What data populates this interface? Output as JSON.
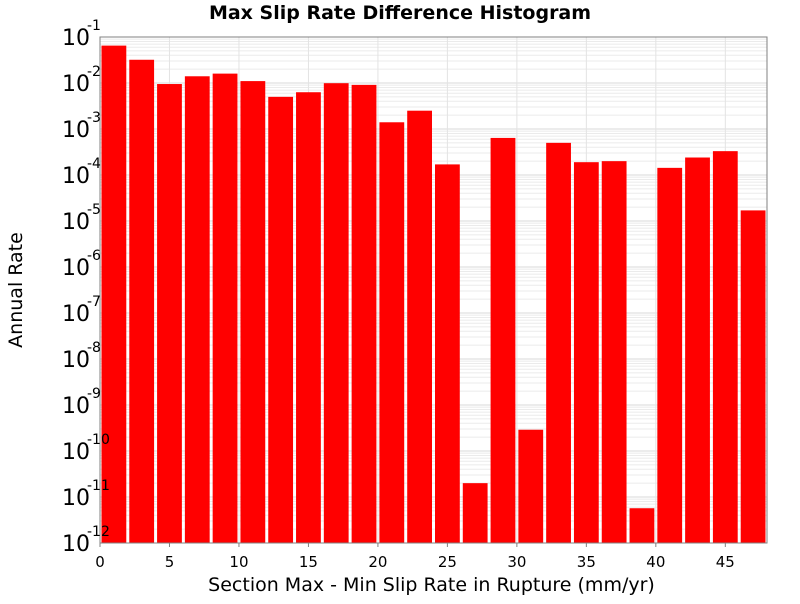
{
  "chart_data": {
    "type": "bar",
    "title": "Max Slip Rate Difference Histogram",
    "xlabel": "Section Max - Min Slip Rate in Rupture (mm/yr)",
    "ylabel": "Annual Rate",
    "y_scale": "log",
    "ylim": [
      1e-12,
      0.1
    ],
    "xlim": [
      0,
      48
    ],
    "bin_width": 2,
    "x_ticks": [
      0,
      5,
      10,
      15,
      20,
      25,
      30,
      35,
      40,
      45
    ],
    "y_tick_exponents": [
      -1,
      -2,
      -3,
      -4,
      -5,
      -6,
      -7,
      -8,
      -9,
      -10,
      -11,
      -12
    ],
    "y_tick_base": "10",
    "grid": true,
    "bar_color": "#ff0000",
    "x": [
      1,
      3,
      5,
      7,
      9,
      11,
      13,
      15,
      17,
      19,
      21,
      23,
      25,
      27,
      29,
      31,
      33,
      35,
      37,
      39,
      41,
      43,
      45,
      47
    ],
    "values": [
      0.065,
      0.032,
      0.0095,
      0.014,
      0.016,
      0.011,
      0.005,
      0.0063,
      0.0099,
      0.0091,
      0.0014,
      0.0025,
      0.00017,
      2e-11,
      0.00064,
      2.9e-10,
      0.0005,
      0.00019,
      0.0002,
      5.7e-12,
      0.000143,
      0.00024,
      0.00033,
      1.7e-05
    ]
  }
}
